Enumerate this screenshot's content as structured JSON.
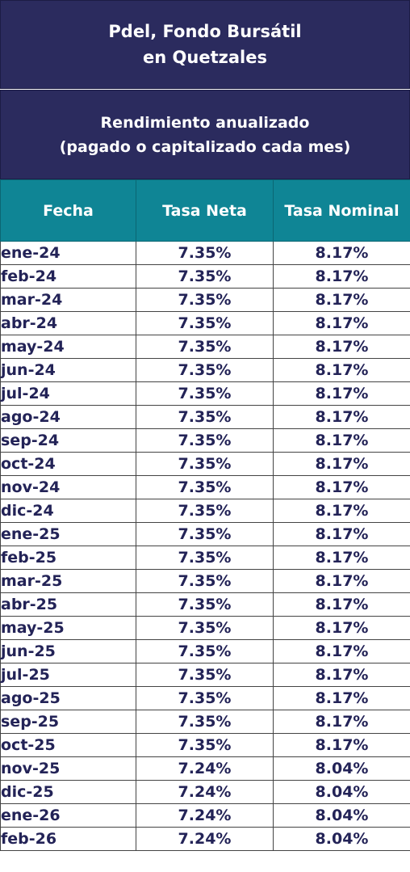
{
  "header": {
    "title_line1": "Pdel, Fondo Bursátil",
    "title_line2": "en Quetzales",
    "subtitle_line1": "Rendimiento anualizado",
    "subtitle_line2": "(pagado o capitalizado cada mes)"
  },
  "colors": {
    "title_background": "#2b2b5e",
    "header_row_background": "#0f8595",
    "body_text": "#232357"
  },
  "table": {
    "columns": [
      "Fecha",
      "Tasa Neta",
      "Tasa Nominal"
    ],
    "rows": [
      {
        "fecha": "ene-24",
        "neta": "7.35%",
        "nominal": "8.17%"
      },
      {
        "fecha": "feb-24",
        "neta": "7.35%",
        "nominal": "8.17%"
      },
      {
        "fecha": "mar-24",
        "neta": "7.35%",
        "nominal": "8.17%"
      },
      {
        "fecha": "abr-24",
        "neta": "7.35%",
        "nominal": "8.17%"
      },
      {
        "fecha": "may-24",
        "neta": "7.35%",
        "nominal": "8.17%"
      },
      {
        "fecha": "jun-24",
        "neta": "7.35%",
        "nominal": "8.17%"
      },
      {
        "fecha": "jul-24",
        "neta": "7.35%",
        "nominal": "8.17%"
      },
      {
        "fecha": "ago-24",
        "neta": "7.35%",
        "nominal": "8.17%"
      },
      {
        "fecha": "sep-24",
        "neta": "7.35%",
        "nominal": "8.17%"
      },
      {
        "fecha": "oct-24",
        "neta": "7.35%",
        "nominal": "8.17%"
      },
      {
        "fecha": "nov-24",
        "neta": "7.35%",
        "nominal": "8.17%"
      },
      {
        "fecha": "dic-24",
        "neta": "7.35%",
        "nominal": "8.17%"
      },
      {
        "fecha": "ene-25",
        "neta": "7.35%",
        "nominal": "8.17%"
      },
      {
        "fecha": "feb-25",
        "neta": "7.35%",
        "nominal": "8.17%"
      },
      {
        "fecha": "mar-25",
        "neta": "7.35%",
        "nominal": "8.17%"
      },
      {
        "fecha": "abr-25",
        "neta": "7.35%",
        "nominal": "8.17%"
      },
      {
        "fecha": "may-25",
        "neta": "7.35%",
        "nominal": "8.17%"
      },
      {
        "fecha": "jun-25",
        "neta": "7.35%",
        "nominal": "8.17%"
      },
      {
        "fecha": "jul-25",
        "neta": "7.35%",
        "nominal": "8.17%"
      },
      {
        "fecha": "ago-25",
        "neta": "7.35%",
        "nominal": "8.17%"
      },
      {
        "fecha": "sep-25",
        "neta": "7.35%",
        "nominal": "8.17%"
      },
      {
        "fecha": "oct-25",
        "neta": "7.35%",
        "nominal": "8.17%"
      },
      {
        "fecha": "nov-25",
        "neta": "7.24%",
        "nominal": "8.04%"
      },
      {
        "fecha": "dic-25",
        "neta": "7.24%",
        "nominal": "8.04%"
      },
      {
        "fecha": "ene-26",
        "neta": "7.24%",
        "nominal": "8.04%"
      },
      {
        "fecha": "feb-26",
        "neta": "7.24%",
        "nominal": "8.04%"
      }
    ]
  }
}
